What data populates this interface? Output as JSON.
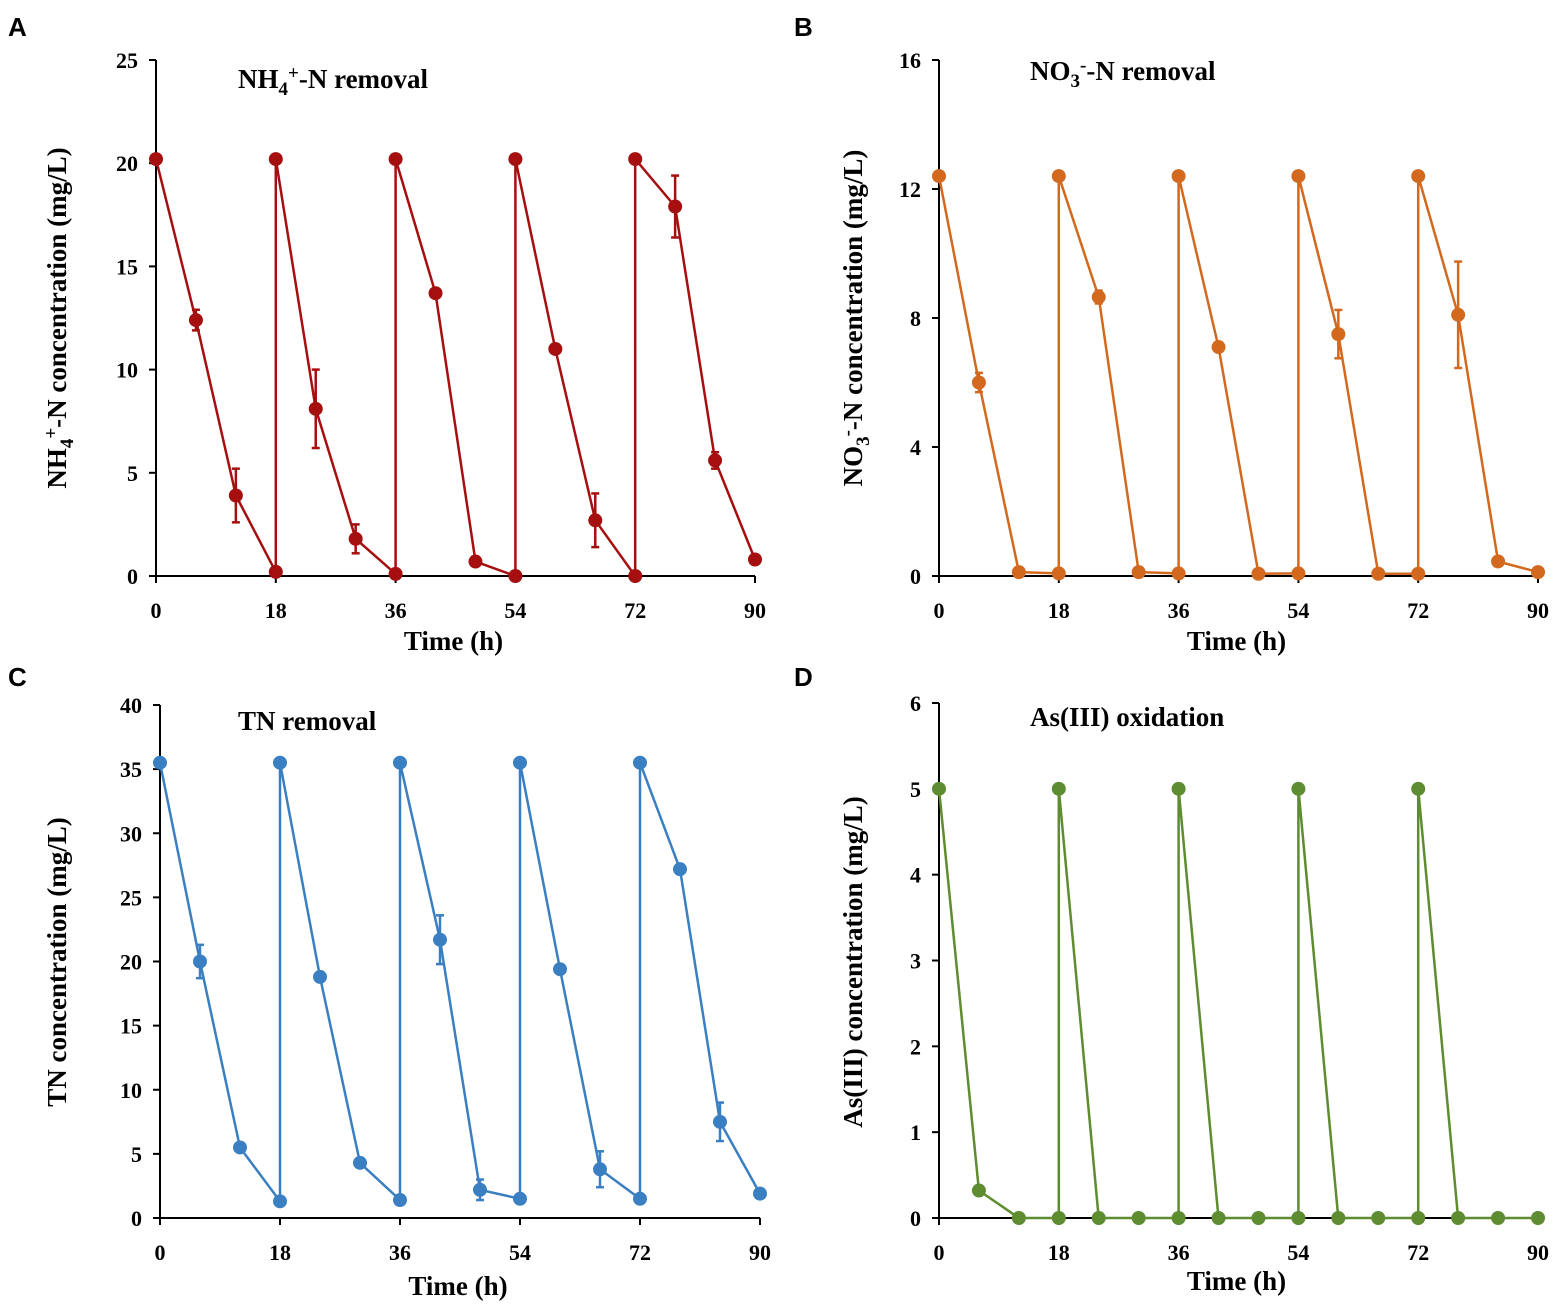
{
  "chart_data": [
    {
      "panel": "A",
      "type": "line",
      "title": "NH4+-N removal",
      "title_parts": {
        "a": "NH",
        "sub1": "4",
        "sup1": "+",
        "b": "-N removal"
      },
      "xlabel": "Time (h)",
      "ylabel": "NH4+-N concentration (mg/L)",
      "ylabel_parts": {
        "a": "NH",
        "sub1": "4",
        "sup1": "+",
        "b": "-N concentration (mg/L)"
      },
      "xlim": [
        0,
        90
      ],
      "ylim": [
        0,
        25
      ],
      "xticks": [
        0,
        18,
        36,
        54,
        72,
        90
      ],
      "yticks": [
        0,
        5,
        10,
        15,
        20,
        25
      ],
      "color": "#a50f0f",
      "series": [
        {
          "name": "NH4+-N",
          "x": [
            0,
            6,
            12,
            18,
            18,
            24,
            30,
            36,
            36,
            42,
            48,
            54,
            54,
            60,
            66,
            72,
            72,
            78,
            84,
            90
          ],
          "y": [
            20.2,
            12.4,
            3.9,
            0.2,
            20.2,
            8.1,
            1.8,
            0.1,
            20.2,
            13.7,
            0.7,
            0.0,
            20.2,
            11.0,
            2.7,
            0.0,
            20.2,
            17.9,
            5.6,
            0.8
          ],
          "err": [
            0,
            0.5,
            1.3,
            0,
            0,
            1.9,
            0.7,
            0,
            0,
            0,
            0,
            0,
            0,
            0,
            1.3,
            0,
            0,
            1.5,
            0.4,
            0
          ]
        }
      ]
    },
    {
      "panel": "B",
      "type": "line",
      "title": "NO3--N removal",
      "title_parts": {
        "a": "NO",
        "sub1": "3",
        "sup1": "-",
        "b": "-N removal"
      },
      "xlabel": "Time (h)",
      "ylabel": "NO3--N concentration (mg/L)",
      "ylabel_parts": {
        "a": "NO",
        "sub1": "3",
        "sup1": "-",
        "b": "-N concentration (mg/L)"
      },
      "xlim": [
        0,
        90
      ],
      "ylim": [
        0,
        16
      ],
      "xticks": [
        0,
        18,
        36,
        54,
        72,
        90
      ],
      "yticks": [
        0,
        4,
        8,
        12,
        16
      ],
      "color": "#d2691e",
      "series": [
        {
          "name": "NO3--N",
          "x": [
            0,
            6,
            12,
            18,
            18,
            24,
            30,
            36,
            36,
            42,
            48,
            54,
            54,
            60,
            66,
            72,
            72,
            78,
            84,
            90
          ],
          "y": [
            12.4,
            6.0,
            0.12,
            0.08,
            12.4,
            8.65,
            0.12,
            0.08,
            12.4,
            7.1,
            0.07,
            0.08,
            12.4,
            7.5,
            0.07,
            0.07,
            12.4,
            8.1,
            0.45,
            0.12
          ],
          "err": [
            0,
            0.3,
            0,
            0,
            0,
            0.2,
            0,
            0,
            0,
            0,
            0,
            0,
            0,
            0.75,
            0,
            0,
            0,
            1.65,
            0,
            0
          ]
        }
      ]
    },
    {
      "panel": "C",
      "type": "line",
      "title": "TN removal",
      "xlabel": "Time (h)",
      "ylabel": "TN concentration (mg/L)",
      "xlim": [
        0,
        90
      ],
      "ylim": [
        0,
        40
      ],
      "xticks": [
        0,
        18,
        36,
        54,
        72,
        90
      ],
      "yticks": [
        0,
        5,
        10,
        15,
        20,
        25,
        30,
        35,
        40
      ],
      "color": "#3a7fc1",
      "series": [
        {
          "name": "TN",
          "x": [
            0,
            6,
            12,
            18,
            18,
            24,
            30,
            36,
            36,
            42,
            48,
            54,
            54,
            60,
            66,
            72,
            72,
            78,
            84,
            90
          ],
          "y": [
            35.5,
            20.0,
            5.5,
            1.3,
            35.5,
            18.8,
            4.3,
            1.4,
            35.5,
            21.7,
            2.2,
            1.5,
            35.5,
            19.4,
            3.8,
            1.5,
            35.5,
            27.2,
            7.5,
            1.9
          ],
          "err": [
            0,
            1.3,
            0,
            0,
            0,
            0,
            0,
            0,
            0,
            1.9,
            0.8,
            0,
            0,
            0,
            1.4,
            0,
            0,
            0,
            1.5,
            0
          ]
        }
      ]
    },
    {
      "panel": "D",
      "type": "line",
      "title": "As(III) oxidation",
      "xlabel": "Time (h)",
      "ylabel": "As(III) concentration (mg/L)",
      "xlim": [
        0,
        90
      ],
      "ylim": [
        0,
        6
      ],
      "xticks": [
        0,
        18,
        36,
        54,
        72,
        90
      ],
      "yticks": [
        0,
        1,
        2,
        3,
        4,
        5,
        6
      ],
      "color": "#5e8c31",
      "series": [
        {
          "name": "As(III)",
          "x": [
            0,
            6,
            12,
            18,
            18,
            24,
            30,
            36,
            36,
            42,
            48,
            54,
            54,
            60,
            66,
            72,
            72,
            78,
            84,
            90
          ],
          "y": [
            5.0,
            0.32,
            0.0,
            0.0,
            5.0,
            0.0,
            0.0,
            0.0,
            5.0,
            0.0,
            0.0,
            0.0,
            5.0,
            0.0,
            0.0,
            0.0,
            5.0,
            0.0,
            0.0,
            0.0
          ],
          "err": [
            0,
            0,
            0,
            0,
            0,
            0,
            0,
            0,
            0,
            0,
            0,
            0,
            0,
            0,
            0,
            0,
            0,
            0,
            0,
            0
          ]
        }
      ]
    }
  ]
}
